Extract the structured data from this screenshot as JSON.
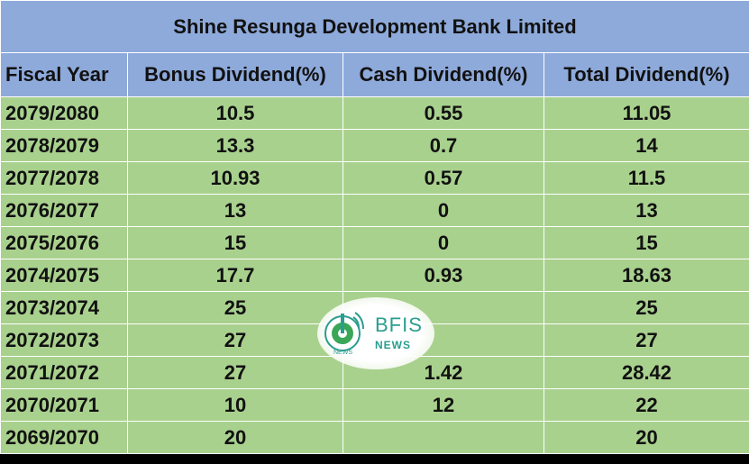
{
  "title": "Shine Resunga Development Bank Limited",
  "columns": [
    "Fiscal Year",
    "Bonus Dividend(%)",
    "Cash Dividend(%)",
    "Total Dividend(%)"
  ],
  "rows": [
    [
      "2079/2080",
      "10.5",
      "0.55",
      "11.05"
    ],
    [
      "2078/2079",
      "13.3",
      "0.7",
      "14"
    ],
    [
      "2077/2078",
      "10.93",
      "0.57",
      "11.5"
    ],
    [
      "2076/2077",
      "13",
      "0",
      "13"
    ],
    [
      "2075/2076",
      "15",
      "0",
      "15"
    ],
    [
      "2074/2075",
      "17.7",
      "0.93",
      "18.63"
    ],
    [
      "2073/2074",
      "25",
      "",
      "25"
    ],
    [
      "2072/2073",
      "27",
      "",
      "27"
    ],
    [
      "2071/2072",
      "27",
      "1.42",
      "28.42"
    ],
    [
      "2070/2071",
      "10",
      "12",
      "22"
    ],
    [
      "2069/2070",
      "20",
      "",
      "20"
    ]
  ],
  "watermark": {
    "brand": "BFIS",
    "sub": "NEWS",
    "icon_text": "NEWS"
  },
  "colors": {
    "header_bg": "#8eaadb",
    "row_bg": "#a9d18e",
    "accent": "#2a9d8f"
  }
}
